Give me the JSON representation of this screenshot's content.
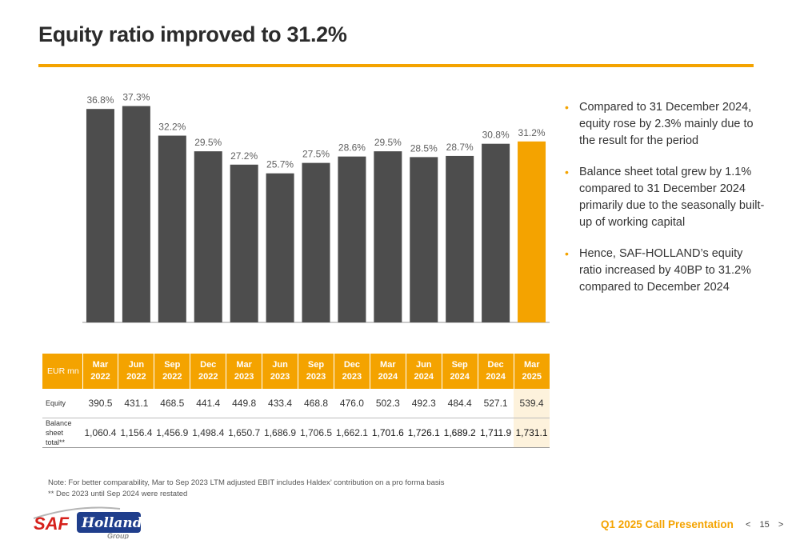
{
  "title": "Equity ratio improved to 31.2%",
  "colors": {
    "accent": "#f4a300",
    "bar": "#4d4d4d",
    "highlight_bar": "#f4a300"
  },
  "chart_data": {
    "type": "bar",
    "categories": [
      "Mar 2022",
      "Jun 2022",
      "Sep 2022",
      "Dec 2022",
      "Mar 2023",
      "Jun 2023",
      "Sep 2023",
      "Dec 2023",
      "Mar 2024",
      "Jun 2024",
      "Sep 2024",
      "Dec 2024",
      "Mar 2025"
    ],
    "values": [
      36.8,
      37.3,
      32.2,
      29.5,
      27.2,
      25.7,
      27.5,
      28.6,
      29.5,
      28.5,
      28.7,
      30.8,
      31.2
    ],
    "labels": [
      "36.8%",
      "37.3%",
      "32.2%",
      "29.5%",
      "27.2%",
      "25.7%",
      "27.5%",
      "28.6%",
      "29.5%",
      "28.5%",
      "28.7%",
      "30.8%",
      "31.2%"
    ],
    "highlight_index": 12,
    "ylim": [
      0,
      40
    ],
    "grid": false,
    "title": "",
    "xlabel": "",
    "ylabel": ""
  },
  "table": {
    "header_label": "EUR mn",
    "columns": [
      {
        "month": "Mar",
        "year": "2022"
      },
      {
        "month": "Jun",
        "year": "2022"
      },
      {
        "month": "Sep",
        "year": "2022"
      },
      {
        "month": "Dec",
        "year": "2022"
      },
      {
        "month": "Mar",
        "year": "2023"
      },
      {
        "month": "Jun",
        "year": "2023"
      },
      {
        "month": "Sep",
        "year": "2023"
      },
      {
        "month": "Dec",
        "year": "2023"
      },
      {
        "month": "Mar",
        "year": "2024"
      },
      {
        "month": "Jun",
        "year": "2024"
      },
      {
        "month": "Sep",
        "year": "2024"
      },
      {
        "month": "Dec",
        "year": "2024"
      },
      {
        "month": "Mar",
        "year": "2025"
      }
    ],
    "rows": [
      {
        "label": "Equity",
        "values": [
          "390.5",
          "431.1",
          "468.5",
          "441.4",
          "449.8",
          "433.4",
          "468.8",
          "476.0",
          "502.3",
          "492.3",
          "484.4",
          "527.1",
          "539.4"
        ]
      },
      {
        "label": "Balance sheet total**",
        "values": [
          "1,060.4",
          "1,156.4",
          "1,456.9",
          "1,498.4",
          "1,650.7",
          "1,686.9",
          "1,706.5",
          "1,662.1",
          "1,701.6",
          "1,726.1",
          "1,689.2",
          "1,711.9",
          "1,731.1"
        ]
      }
    ]
  },
  "bullets": [
    "Compared to 31 December 2024, equity rose by 2.3% mainly due to the result for the period",
    "Balance sheet total grew by 1.1% compared to 31 December 2024 primarily due to the seasonally built-up of working capital",
    "Hence, SAF-HOLLAND’s equity ratio increased by 40BP to 31.2% compared to December 2024"
  ],
  "notes": [
    "Note: For better comparability, Mar to Sep 2023 LTM adjusted EBIT includes Haldex’ contribution on a pro forma basis",
    "** Dec 2023 until Sep 2024 were restated"
  ],
  "logo": {
    "text_main": "SAF",
    "text_script": "Holland",
    "text_sub": "Group"
  },
  "footer": {
    "title": "Q1 2025 Call Presentation",
    "page": "15",
    "prev": "<",
    "next": ">"
  }
}
